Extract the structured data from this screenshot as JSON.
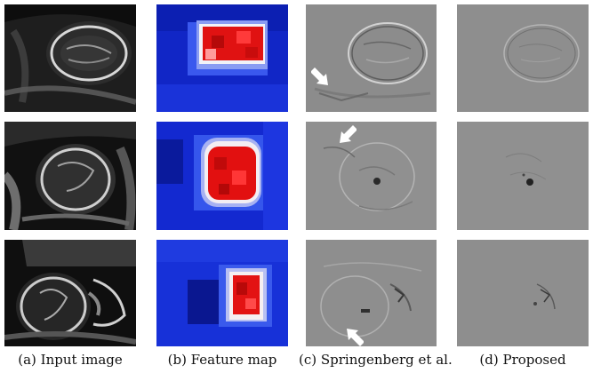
{
  "captions": {
    "a": "(a) Input image",
    "b": "(b) Feature map",
    "c": "(c) Springenberg et al.",
    "d": "(d) Proposed"
  },
  "colors": {
    "heatmap_low": "#1a2fd6",
    "heatmap_high": "#e01010",
    "saliency_bg": "#8e8e8e",
    "arrow": "#ffffff"
  }
}
